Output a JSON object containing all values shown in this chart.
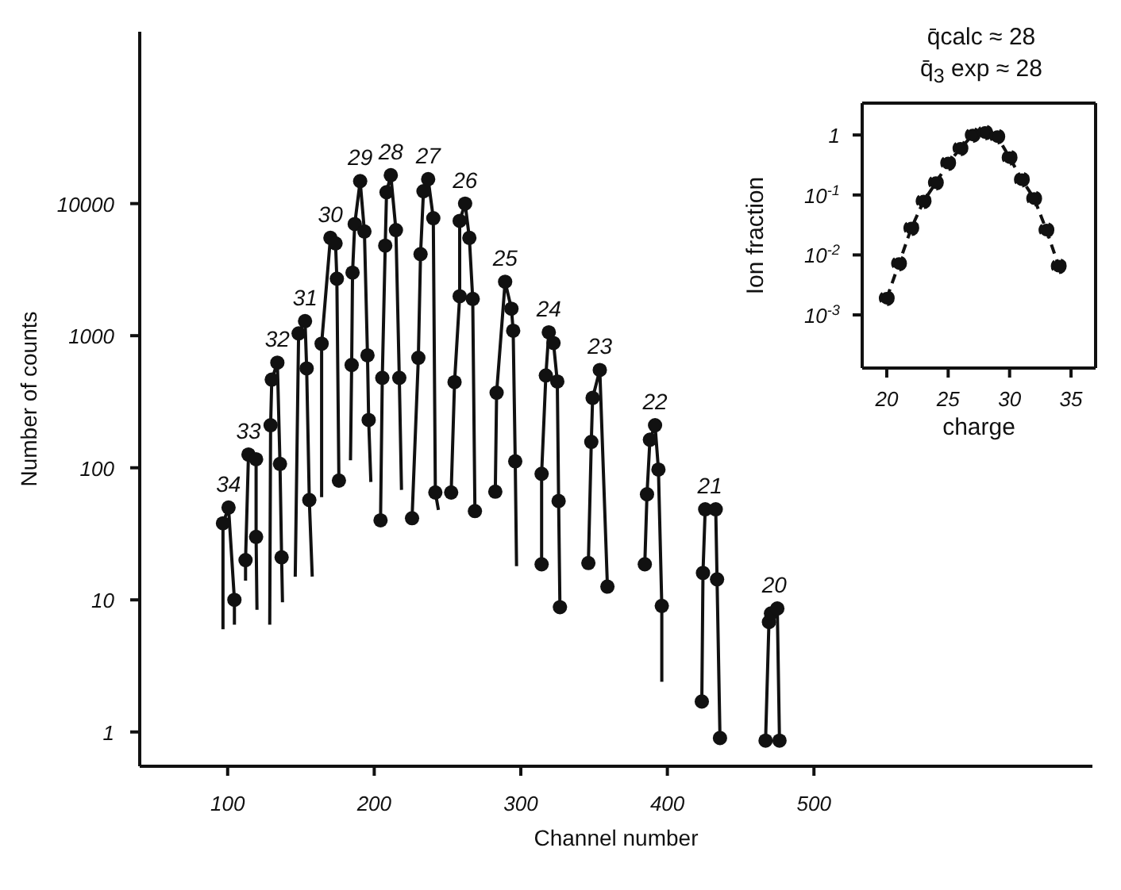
{
  "chart_data": [
    {
      "type": "line",
      "xlabel": "Channel number",
      "ylabel": "Number of counts",
      "xlim": [
        40,
        690
      ],
      "ylim": [
        0.55,
        200000
      ],
      "xticks": [
        100,
        200,
        300,
        400,
        500
      ],
      "yticks": [
        1,
        10,
        100,
        1000,
        10000
      ],
      "log": "y",
      "series": [
        {
          "type": "line",
          "color": "#111111",
          "marker": "none",
          "x": [
            96.8,
            96.8,
            100.6,
            104.6,
            104.6
          ],
          "values": [
            6,
            38,
            50,
            10,
            6.5
          ]
        },
        {
          "type": "line",
          "color": "#111111",
          "marker": "none",
          "x": [
            112.2,
            112.2,
            114.2,
            119.4,
            119.4,
            120
          ],
          "values": [
            14,
            20,
            126,
            116,
            30,
            8.4
          ]
        },
        {
          "type": "line",
          "color": "#111111",
          "marker": "none",
          "x": [
            128.7,
            129.3,
            130.1,
            133.9,
            135.7,
            136.8,
            137.4
          ],
          "values": [
            6.5,
            210,
            465,
            625,
            107,
            21,
            9.6
          ]
        },
        {
          "type": "line",
          "color": "#111111",
          "marker": "none",
          "x": [
            146.1,
            148.4,
            152.8,
            153.9,
            155.7,
            157.7
          ],
          "values": [
            15,
            1040,
            1290,
            565,
            57,
            15
          ]
        },
        {
          "type": "line",
          "color": "#111111",
          "marker": "none",
          "x": [
            164.1,
            164.1,
            170.1,
            173.6,
            174.5,
            175.9
          ],
          "values": [
            60,
            870,
            5500,
            5000,
            2700,
            80
          ]
        },
        {
          "type": "line",
          "color": "#111111",
          "marker": "none",
          "x": [
            183.8,
            184.6,
            185.2,
            186.7,
            190.4,
            193.3,
            195.4,
            196.2,
            197.7
          ],
          "values": [
            114,
            600,
            3000,
            7000,
            14800,
            6150,
            710,
            230,
            78
          ]
        },
        {
          "type": "line",
          "color": "#111111",
          "marker": "none",
          "x": [
            204.3,
            205.5,
            207.5,
            208.4,
            211.3,
            214.8,
            217.1,
            218.6
          ],
          "values": [
            40,
            480,
            4800,
            12200,
            16400,
            6300,
            480,
            68
          ]
        },
        {
          "type": "line",
          "color": "#111111",
          "marker": "none",
          "x": [
            225.8,
            230.1,
            231.6,
            233.6,
            236.8,
            240.3,
            241.7,
            243.8
          ],
          "values": [
            41.5,
            680,
            4150,
            12400,
            15300,
            7750,
            65,
            48
          ]
        },
        {
          "type": "line",
          "color": "#111111",
          "marker": "none",
          "x": [
            252.5,
            254.8,
            258.3,
            258.3,
            262,
            264.9,
            267.2,
            268.7
          ],
          "values": [
            65,
            445,
            1990,
            7400,
            10000,
            5500,
            1900,
            47
          ]
        },
        {
          "type": "line",
          "color": "#111111",
          "marker": "none",
          "x": [
            282.6,
            283.5,
            289.3,
            293.6,
            294.8,
            296.2,
            297.1
          ],
          "values": [
            66,
            370,
            2560,
            1600,
            1090,
            112,
            18
          ]
        },
        {
          "type": "line",
          "color": "#111111",
          "marker": "none",
          "x": [
            314.2,
            314.2,
            317.1,
            319.1,
            322.3,
            324.9,
            325.8,
            326.7
          ],
          "values": [
            18.6,
            90,
            500,
            1060,
            880,
            450,
            56,
            8.8
          ]
        },
        {
          "type": "line",
          "color": "#111111",
          "marker": "none",
          "x": [
            346.1,
            348.1,
            349,
            353.9,
            359.1
          ],
          "values": [
            19,
            157,
            338,
            550,
            12.6
          ]
        },
        {
          "type": "line",
          "color": "#111111",
          "marker": "none",
          "x": [
            384.6,
            386.1,
            388.1,
            391.6,
            393.9,
            396.2,
            396.2
          ],
          "values": [
            18.6,
            63,
            163,
            210,
            97,
            9,
            2.4
          ]
        },
        {
          "type": "line",
          "color": "#111111",
          "marker": "none",
          "x": [
            423.5,
            424.3,
            425.8,
            433,
            433.9,
            435.9
          ],
          "values": [
            1.7,
            16,
            48.5,
            48.5,
            14.3,
            0.9
          ]
        },
        {
          "type": "line",
          "color": "#111111",
          "marker": "none",
          "x": [
            467,
            469.3,
            470.7,
            475,
            476.5
          ],
          "values": [
            0.86,
            6.8,
            7.9,
            8.6,
            0.86
          ]
        },
        {
          "type": "scatter",
          "color": "#111111",
          "marker": "circle",
          "x": [
            96.8,
            100.6,
            104.6,
            112.2,
            114.2,
            119.4,
            119.4,
            129.3,
            130.1,
            133.9,
            135.7,
            136.8,
            148.4,
            152.8,
            153.9,
            155.7,
            164.1,
            170.1,
            173.6,
            174.5,
            175.9,
            184.6,
            185.2,
            186.7,
            190.4,
            193.3,
            195.4,
            196.2,
            204.3,
            205.5,
            207.5,
            208.4,
            211.3,
            214.8,
            217.1,
            225.8,
            230.1,
            231.6,
            233.6,
            236.8,
            240.3,
            241.7,
            252.5,
            254.8,
            258.3,
            258.3,
            262,
            264.9,
            267.2,
            268.7,
            282.6,
            283.5,
            289.3,
            293.6,
            294.8,
            296.2,
            314.2,
            314.2,
            317.1,
            319.1,
            322.3,
            324.9,
            325.8,
            326.7,
            346.1,
            348.1,
            349,
            353.9,
            359.1,
            384.6,
            386.1,
            388.1,
            391.6,
            393.9,
            396.2,
            423.5,
            424.3,
            425.8,
            433,
            433.9,
            435.9,
            467,
            469.3,
            470.7,
            475,
            476.5
          ],
          "values": [
            38,
            50,
            10,
            20,
            126,
            116,
            30,
            210,
            465,
            625,
            107,
            21,
            1040,
            1290,
            565,
            57,
            870,
            5500,
            5000,
            2700,
            80,
            600,
            3000,
            7000,
            14800,
            6150,
            710,
            230,
            40,
            480,
            4800,
            12200,
            16400,
            6300,
            480,
            41.5,
            680,
            4150,
            12400,
            15300,
            7750,
            65,
            65,
            445,
            1990,
            7400,
            10000,
            5500,
            1900,
            47,
            66,
            370,
            2560,
            1600,
            1090,
            112,
            18.6,
            90,
            500,
            1060,
            880,
            450,
            56,
            8.8,
            19,
            157,
            338,
            550,
            12.6,
            18.6,
            63,
            163,
            210,
            97,
            9,
            1.7,
            16,
            48.5,
            48.5,
            14.3,
            0.9,
            0.86,
            6.8,
            7.9,
            8.6,
            0.86
          ]
        }
      ],
      "annotations": [
        {
          "text": "34",
          "x": 100.6,
          "y": 50
        },
        {
          "text": "33",
          "x": 114.2,
          "y": 126
        },
        {
          "text": "32",
          "x": 133.9,
          "y": 625
        },
        {
          "text": "31",
          "x": 152.8,
          "y": 1290
        },
        {
          "text": "30",
          "x": 170.1,
          "y": 5500
        },
        {
          "text": "29",
          "x": 190.4,
          "y": 14800
        },
        {
          "text": "28",
          "x": 211.3,
          "y": 16400
        },
        {
          "text": "27",
          "x": 236.8,
          "y": 15300
        },
        {
          "text": "26",
          "x": 262,
          "y": 10000
        },
        {
          "text": "25",
          "x": 289.3,
          "y": 2560
        },
        {
          "text": "24",
          "x": 319.1,
          "y": 1060
        },
        {
          "text": "23",
          "x": 353.9,
          "y": 550
        },
        {
          "text": "22",
          "x": 391.6,
          "y": 210
        },
        {
          "text": "21",
          "x": 429,
          "y": 48.5
        },
        {
          "text": "20",
          "x": 473,
          "y": 8.6
        }
      ]
    },
    {
      "type": "line",
      "xlabel": "charge",
      "ylabel": "Ion fraction",
      "xlim": [
        18,
        37
      ],
      "ylim": [
        0.00013,
        3.4
      ],
      "xticks": [
        20,
        25,
        30,
        35
      ],
      "yticks": [
        {
          "value": 1,
          "label": "1"
        },
        {
          "value": 0.1,
          "label": "10$^{-1}$"
        },
        {
          "value": 0.01,
          "label": "10$^{-2}$"
        },
        {
          "value": 0.001,
          "label": "10$^{-3}$"
        }
      ],
      "log": "y",
      "marker": "circle",
      "line_style": "dashed",
      "annotations": [
        "q̄calc ≈ 28",
        "q̄$_{3}$ exp ≈ 28"
      ],
      "series": [
        {
          "color": "#111111",
          "x": [
            20,
            21,
            22,
            23,
            24,
            25,
            26,
            27,
            28,
            29,
            30,
            31,
            32,
            33,
            34
          ],
          "values": [
            0.0019,
            0.0072,
            0.028,
            0.079,
            0.16,
            0.34,
            0.6,
            1.0,
            1.1,
            0.94,
            0.42,
            0.18,
            0.087,
            0.026,
            0.0065
          ]
        }
      ]
    }
  ]
}
